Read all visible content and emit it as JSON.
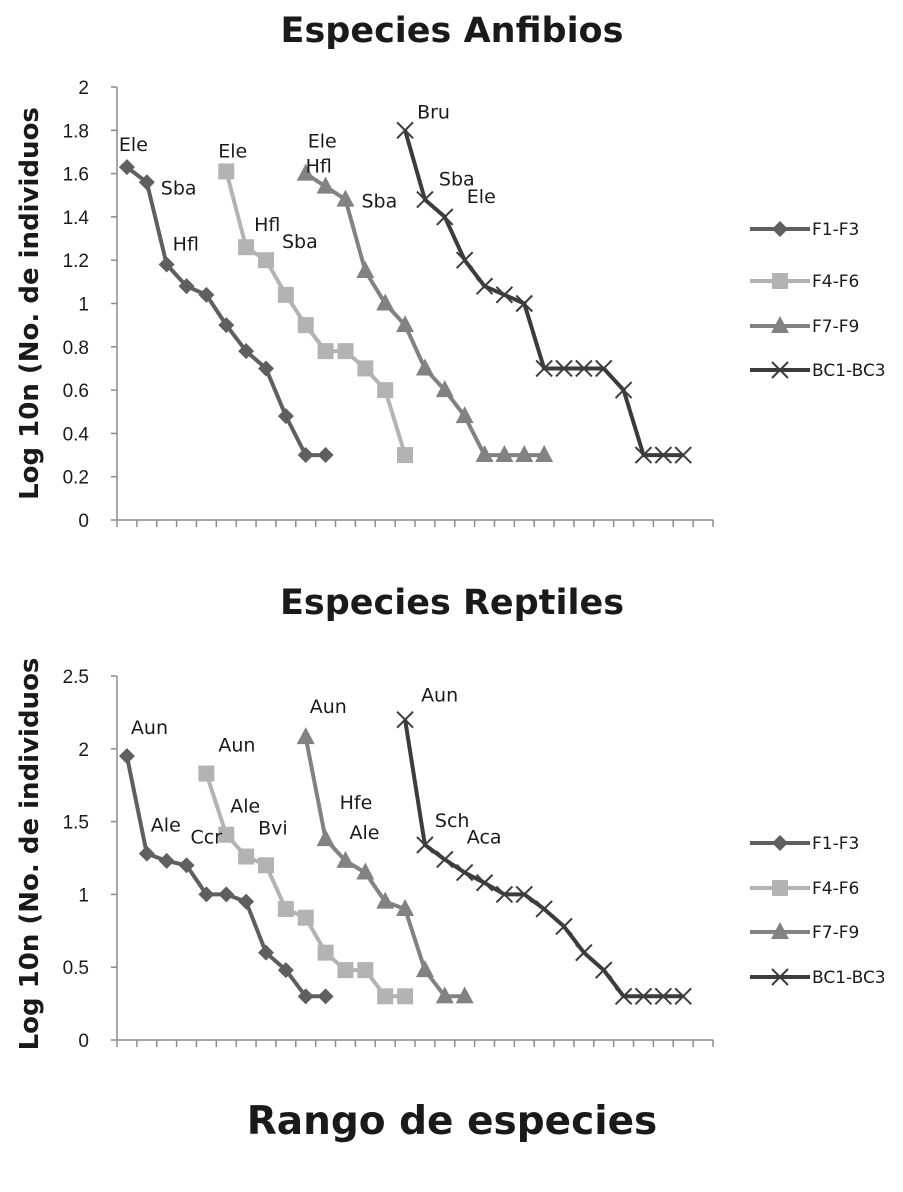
{
  "colors": {
    "F1-F3": "#5f5f5f",
    "F4-F6": "#b3b3b3",
    "F7-F9": "#828282",
    "BC1-BC3": "#3c3c3c",
    "axis": "#8c8c8c"
  },
  "chart_data": [
    {
      "type": "line",
      "title": "Especies Anfibios",
      "ylabel": "Log 10n (No. de individuos",
      "xlabel": "",
      "ylim": [
        0,
        2
      ],
      "yticks": [
        "0",
        "0.2",
        "0.4",
        "0.6",
        "0.8",
        "1",
        "1.2",
        "1.4",
        "1.6",
        "1.8",
        "2"
      ],
      "x_count": 30,
      "legend_position": "right",
      "series": [
        {
          "name": "F1-F3",
          "marker": "diamond",
          "x": [
            1,
            2,
            3,
            4,
            5,
            6,
            7,
            8,
            9,
            10,
            11
          ],
          "y": [
            1.63,
            1.56,
            1.18,
            1.08,
            1.04,
            0.9,
            0.78,
            0.7,
            0.48,
            0.3,
            0.3
          ]
        },
        {
          "name": "F4-F6",
          "marker": "square",
          "x": [
            6,
            7,
            8,
            9,
            10,
            11,
            12,
            13,
            14,
            15
          ],
          "y": [
            1.61,
            1.26,
            1.2,
            1.04,
            0.9,
            0.78,
            0.78,
            0.7,
            0.6,
            0.3
          ]
        },
        {
          "name": "F7-F9",
          "marker": "triangle",
          "x": [
            10,
            11,
            12,
            13,
            14,
            15,
            16,
            17,
            18,
            19,
            20,
            21,
            22
          ],
          "y": [
            1.6,
            1.54,
            1.48,
            1.15,
            1.0,
            0.9,
            0.7,
            0.6,
            0.48,
            0.3,
            0.3,
            0.3,
            0.3
          ]
        },
        {
          "name": "BC1-BC3",
          "marker": "x",
          "x": [
            15,
            16,
            17,
            18,
            19,
            20,
            21,
            22,
            23,
            24,
            25,
            26,
            27,
            28,
            29
          ],
          "y": [
            1.8,
            1.48,
            1.4,
            1.2,
            1.08,
            1.04,
            1.0,
            0.7,
            0.7,
            0.7,
            0.7,
            0.6,
            0.3,
            0.3,
            0.3
          ]
        }
      ],
      "annotations": [
        {
          "text": "Ele",
          "x": 1,
          "y": 1.63
        },
        {
          "text": "Sba",
          "x": 2,
          "y": 1.56
        },
        {
          "text": "Hfl",
          "x": 3,
          "y": 1.18
        },
        {
          "text": "Ele",
          "x": 6,
          "y": 1.61
        },
        {
          "text": "Hfl",
          "x": 7,
          "y": 1.26
        },
        {
          "text": "Sba",
          "x": 8,
          "y": 1.2
        },
        {
          "text": "Ele",
          "x": 10,
          "y": 1.6
        },
        {
          "text": "Hfl",
          "x": 11,
          "y": 1.54
        },
        {
          "text": "Sba",
          "x": 12,
          "y": 1.48
        },
        {
          "text": "Bru",
          "x": 15,
          "y": 1.8
        },
        {
          "text": "Sba",
          "x": 16,
          "y": 1.48
        },
        {
          "text": "Ele",
          "x": 17,
          "y": 1.4
        }
      ]
    },
    {
      "type": "line",
      "title": "Especies Reptiles",
      "ylabel": "Log 10n (No. de individuos",
      "xlabel": "Rango de especies",
      "ylim": [
        0,
        2.5
      ],
      "yticks": [
        "0",
        "0.5",
        "1",
        "1.5",
        "2",
        "2.5"
      ],
      "x_count": 30,
      "legend_position": "right",
      "series": [
        {
          "name": "F1-F3",
          "marker": "diamond",
          "x": [
            1,
            2,
            3,
            4,
            5,
            6,
            7,
            8,
            9,
            10,
            11
          ],
          "y": [
            1.95,
            1.28,
            1.23,
            1.2,
            1.0,
            1.0,
            0.95,
            0.6,
            0.48,
            0.3,
            0.3
          ]
        },
        {
          "name": "F4-F6",
          "marker": "square",
          "x": [
            5,
            6,
            7,
            8,
            9,
            10,
            11,
            12,
            13,
            14,
            15
          ],
          "y": [
            1.83,
            1.41,
            1.26,
            1.2,
            0.9,
            0.84,
            0.6,
            0.48,
            0.48,
            0.3,
            0.3
          ]
        },
        {
          "name": "F7-F9",
          "marker": "triangle",
          "x": [
            10,
            11,
            12,
            13,
            14,
            15,
            16,
            17,
            18
          ],
          "y": [
            2.08,
            1.38,
            1.23,
            1.15,
            0.95,
            0.9,
            0.48,
            0.3,
            0.3
          ]
        },
        {
          "name": "BC1-BC3",
          "marker": "x",
          "x": [
            15,
            16,
            17,
            18,
            19,
            20,
            21,
            22,
            23,
            24,
            25,
            26,
            27,
            28,
            29
          ],
          "y": [
            2.2,
            1.34,
            1.24,
            1.15,
            1.08,
            1.0,
            1.0,
            0.9,
            0.78,
            0.6,
            0.48,
            0.3,
            0.3,
            0.3,
            0.3
          ]
        }
      ],
      "annotations": [
        {
          "text": "Aun",
          "x": 1,
          "y": 1.95
        },
        {
          "text": "Ale",
          "x": 2,
          "y": 1.28
        },
        {
          "text": "Ccr",
          "x": 4,
          "y": 1.2
        },
        {
          "text": "Aun",
          "x": 5,
          "y": 1.83
        },
        {
          "text": "Ale",
          "x": 6,
          "y": 1.41
        },
        {
          "text": "Bvi",
          "x": 7,
          "y": 1.26
        },
        {
          "text": "Aun",
          "x": 10,
          "y": 2.08
        },
        {
          "text": "Hfe",
          "x": 11,
          "y": 1.38
        },
        {
          "text": "Ale",
          "x": 12,
          "y": 1.23
        },
        {
          "text": "Aun",
          "x": 15,
          "y": 2.2
        },
        {
          "text": "Sch",
          "x": 16,
          "y": 1.34
        },
        {
          "text": "Aca",
          "x": 17,
          "y": 1.24
        }
      ]
    }
  ]
}
